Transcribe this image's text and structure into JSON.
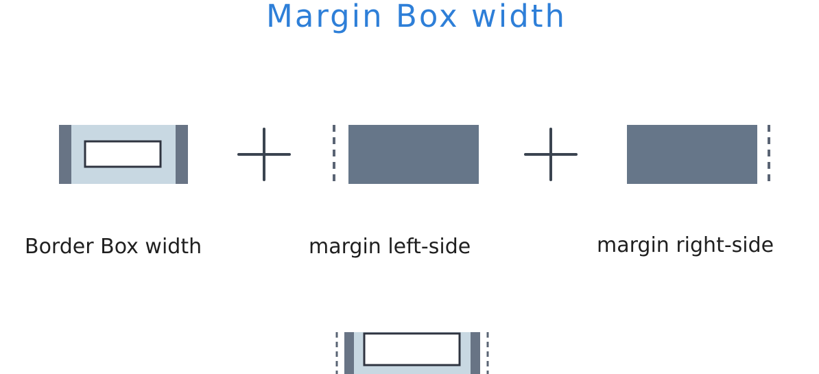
{
  "title": "Margin Box width",
  "labels": {
    "border_box": "Border Box width",
    "margin_left": "margin left-side",
    "margin_right": "margin right-side"
  },
  "colors": {
    "title": "#2e7fd8",
    "border_bar": "#687485",
    "padding_fill": "#c8d8e2",
    "margin_fill": "#667689",
    "content_fill": "#ffffff",
    "stroke": "#2f3440",
    "plus": "#3b4450",
    "dash": "#5a6474"
  }
}
